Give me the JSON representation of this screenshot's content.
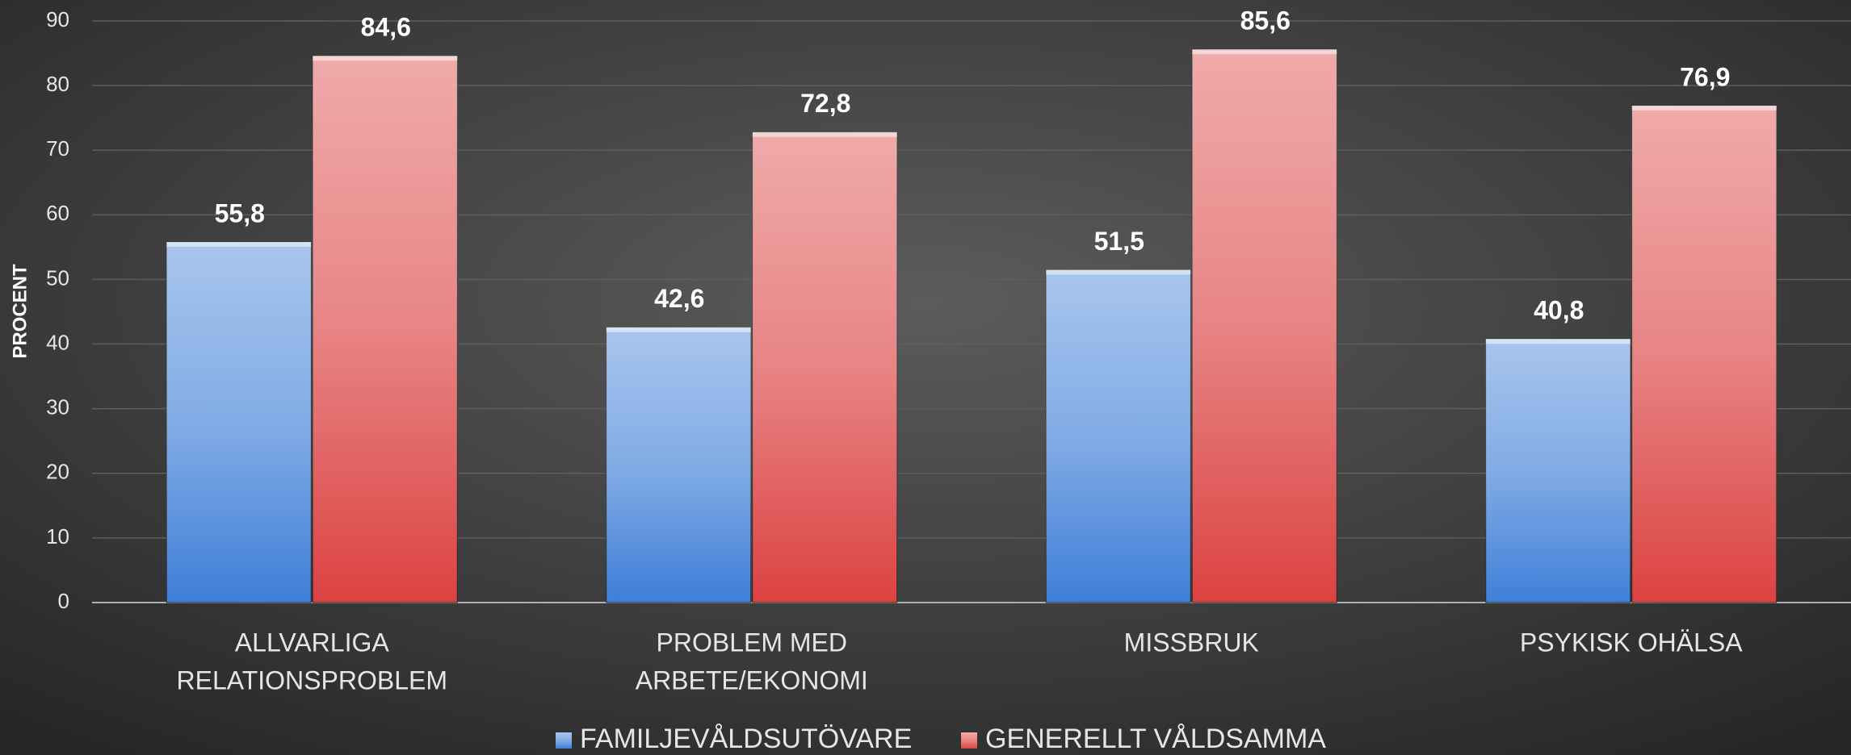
{
  "chart_data": {
    "type": "bar",
    "y_label": "PROCENT",
    "categories": [
      [
        "ALLVARLIGA",
        "RELATIONSPROBLEM"
      ],
      [
        "PROBLEM MED",
        "ARBETE/EKONOMI"
      ],
      [
        "MISSBRUK"
      ],
      [
        "PSYKISK OHÄLSA"
      ]
    ],
    "series": [
      {
        "name": "FAMILJEVÅLDSUTÖVARE",
        "color": "#3f7fd8",
        "values": [
          55.8,
          42.6,
          51.5,
          40.8
        ],
        "value_labels": [
          "55,8",
          "42,6",
          "51,5",
          "40,8"
        ]
      },
      {
        "name": "GENERELLT VÅLDSAMMA",
        "color": "#dc4242",
        "values": [
          84.6,
          72.8,
          85.6,
          76.9
        ],
        "value_labels": [
          "84,6",
          "72,8",
          "85,6",
          "76,9"
        ]
      }
    ],
    "ylim": [
      0,
      90
    ],
    "yticks": [
      0,
      10,
      20,
      30,
      40,
      50,
      60,
      70,
      80,
      90
    ],
    "grid": true,
    "legend": "bottom"
  }
}
